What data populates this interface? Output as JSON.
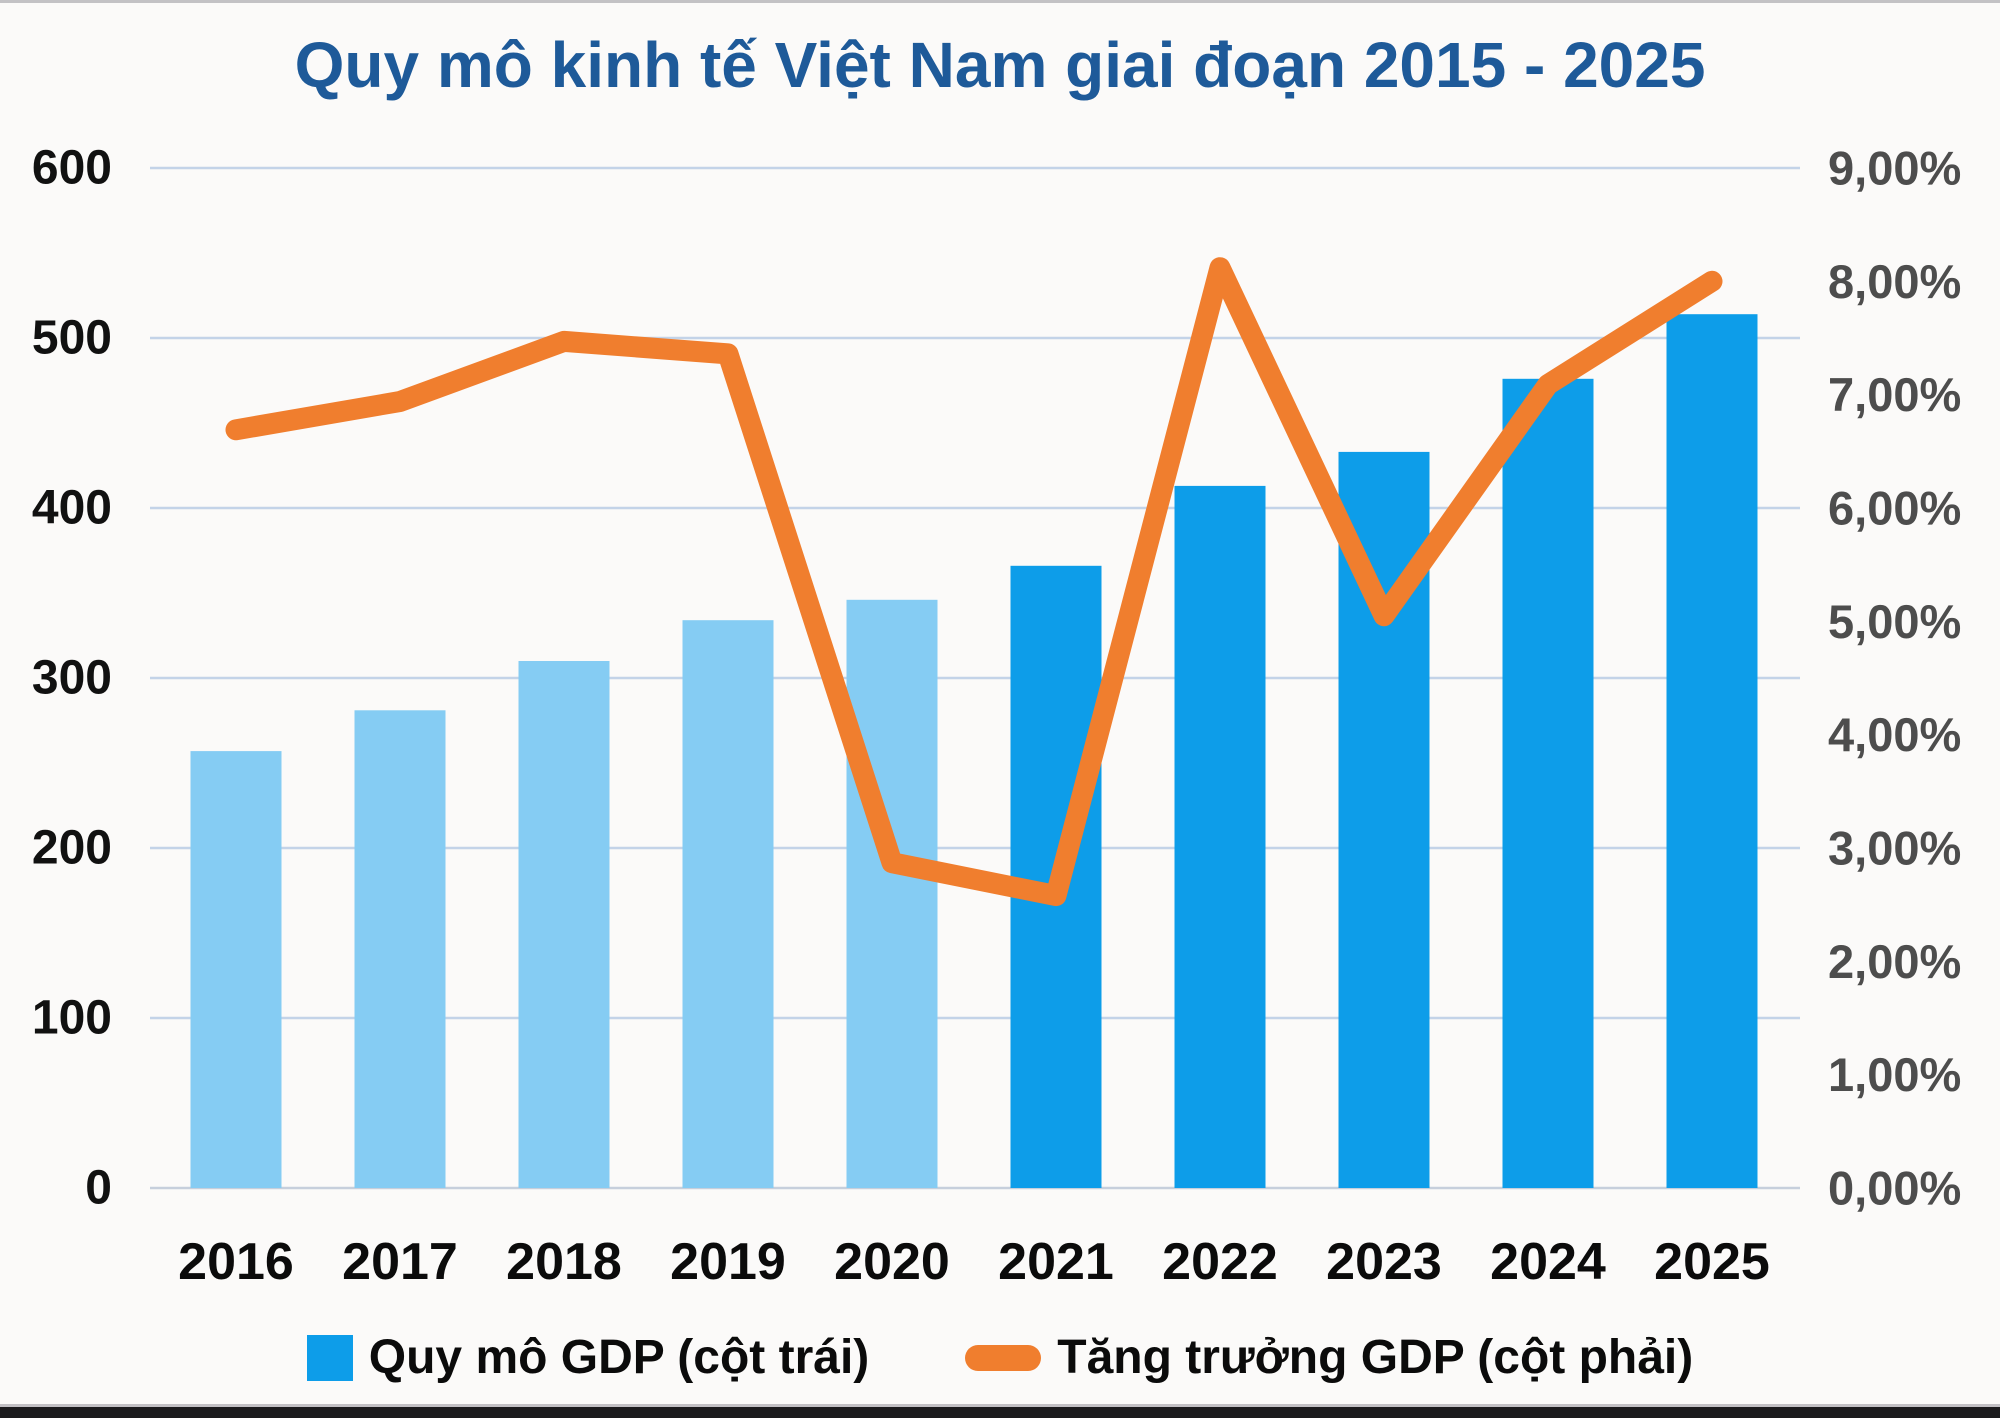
{
  "page": {
    "title": "Quy mô kinh tế Việt Nam giai đoạn 2015 - 2025"
  },
  "legend": {
    "gdp_size_label": "Quy mô GDP (cột trái)",
    "gdp_growth_label": "Tăng trưởng GDP (cột phải)"
  },
  "colors": {
    "title": "#1E5A99",
    "bar_light": "#85CCF3",
    "bar_dark": "#0D9DE9",
    "line_orange": "#F07E2E",
    "gridline": "#C3D3E8",
    "axis_line": "#C6CFDC",
    "left_tick_text": "#111111",
    "right_tick_text": "#4D4D4D",
    "x_tick_text": "#0B0B0B"
  },
  "chart_data": {
    "type": "combo",
    "title": "Quy mô kinh tế Việt Nam giai đoạn 2015 - 2025",
    "categories": [
      "2016",
      "2017",
      "2018",
      "2019",
      "2020",
      "2021",
      "2022",
      "2023",
      "2024",
      "2025"
    ],
    "series": [
      {
        "name": "Quy mô GDP (cột trái)",
        "type": "bar",
        "axis": "left",
        "values": [
          257,
          281,
          310,
          334,
          346,
          366,
          413,
          433,
          476,
          514
        ],
        "light_color_years": [
          "2016",
          "2017",
          "2018",
          "2019",
          "2020"
        ],
        "dark_color_years": [
          "2021",
          "2022",
          "2023",
          "2024",
          "2025"
        ]
      },
      {
        "name": "Tăng trưởng GDP (cột phải)",
        "type": "line",
        "axis": "right",
        "values": [
          6.69,
          6.94,
          7.47,
          7.36,
          2.87,
          2.58,
          8.12,
          5.05,
          7.09,
          8.0
        ]
      }
    ],
    "left_axis": {
      "min": 0,
      "max": 600,
      "tick_labels": [
        "600",
        "500",
        "400",
        "300",
        "200",
        "100",
        "0"
      ]
    },
    "right_axis": {
      "min": 0,
      "max": 9,
      "tick_labels": [
        "9,00%",
        "8,00%",
        "7,00%",
        "6,00%",
        "5,00%",
        "4,00%",
        "3,00%",
        "2,00%",
        "1,00%",
        "0,00%"
      ]
    },
    "grid": true,
    "legend_position": "bottom"
  }
}
